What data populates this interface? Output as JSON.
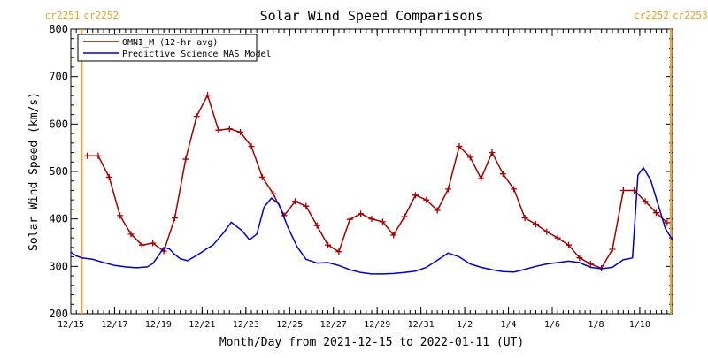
{
  "chart_data": {
    "type": "line",
    "title": "Solar Wind Speed Comparisons",
    "xlabel": "Month/Day from 2021-12-15 to 2022-01-11 (UT)",
    "ylabel": "Solar Wind Speed (km/s)",
    "xlim": [
      "2021-12-15T00:00",
      "2022-01-11T12:00"
    ],
    "ylim": [
      200,
      800
    ],
    "yticks": [
      200,
      300,
      400,
      500,
      600,
      700,
      800
    ],
    "xticks": [
      {
        "date": "2021-12-15",
        "label": "12/15"
      },
      {
        "date": "2021-12-17",
        "label": "12/17"
      },
      {
        "date": "2021-12-19",
        "label": "12/19"
      },
      {
        "date": "2021-12-21",
        "label": "12/21"
      },
      {
        "date": "2021-12-23",
        "label": "12/23"
      },
      {
        "date": "2021-12-25",
        "label": "12/25"
      },
      {
        "date": "2021-12-27",
        "label": "12/27"
      },
      {
        "date": "2021-12-29",
        "label": "12/29"
      },
      {
        "date": "2021-12-31",
        "label": "12/31"
      },
      {
        "date": "2022-01-02",
        "label": "1/2"
      },
      {
        "date": "2022-01-04",
        "label": "1/4"
      },
      {
        "date": "2022-01-06",
        "label": "1/6"
      },
      {
        "date": "2022-01-08",
        "label": "1/8"
      },
      {
        "date": "2022-01-10",
        "label": "1/10"
      }
    ],
    "carrington": [
      {
        "date": "2021-12-15T12:00",
        "left_label": "cr2251",
        "right_label": "cr2252"
      },
      {
        "date": "2022-01-11T10:00",
        "left_label": "cr2252",
        "right_label": "cr2253"
      }
    ],
    "legend_position": "top-left",
    "grid": false,
    "series": [
      {
        "name": "OMNI_M (12-hr avg)",
        "color": "#a00000",
        "markers": "plus",
        "x": [
          "2021-12-15T18:00",
          "2021-12-16T06:00",
          "2021-12-16T18:00",
          "2021-12-17T06:00",
          "2021-12-17T18:00",
          "2021-12-18T06:00",
          "2021-12-18T18:00",
          "2021-12-19T06:00",
          "2021-12-19T18:00",
          "2021-12-20T06:00",
          "2021-12-20T18:00",
          "2021-12-21T06:00",
          "2021-12-21T18:00",
          "2021-12-22T06:00",
          "2021-12-22T18:00",
          "2021-12-23T06:00",
          "2021-12-23T18:00",
          "2021-12-24T06:00",
          "2021-12-24T18:00",
          "2021-12-25T06:00",
          "2021-12-25T18:00",
          "2021-12-26T06:00",
          "2021-12-26T18:00",
          "2021-12-27T06:00",
          "2021-12-27T18:00",
          "2021-12-28T06:00",
          "2021-12-28T18:00",
          "2021-12-29T06:00",
          "2021-12-29T18:00",
          "2021-12-30T06:00",
          "2021-12-30T18:00",
          "2021-12-31T06:00",
          "2021-12-31T18:00",
          "2022-01-01T06:00",
          "2022-01-01T18:00",
          "2022-01-02T06:00",
          "2022-01-02T18:00",
          "2022-01-03T06:00",
          "2022-01-03T18:00",
          "2022-01-04T06:00",
          "2022-01-04T18:00",
          "2022-01-05T06:00",
          "2022-01-05T18:00",
          "2022-01-06T06:00",
          "2022-01-06T18:00",
          "2022-01-07T06:00",
          "2022-01-07T18:00",
          "2022-01-08T06:00",
          "2022-01-08T18:00",
          "2022-01-09T06:00",
          "2022-01-09T18:00",
          "2022-01-10T06:00",
          "2022-01-10T18:00",
          "2022-01-11T06:00"
        ],
        "values": [
          533,
          533,
          488,
          407,
          368,
          345,
          349,
          332,
          402,
          526,
          616,
          661,
          587,
          590,
          583,
          553,
          488,
          453,
          407,
          437,
          427,
          386,
          345,
          331,
          399,
          411,
          400,
          394,
          366,
          405,
          450,
          440,
          418,
          463,
          553,
          530,
          485,
          540,
          495,
          463,
          402,
          389,
          373,
          360,
          345,
          318,
          305,
          296,
          336,
          460,
          460,
          437,
          413,
          392
        ]
      },
      {
        "name": "Predictive Science MAS Model",
        "color": "#0000c0",
        "markers": "none",
        "x": [
          "2021-12-15T00:00",
          "2021-12-15T06:00",
          "2021-12-15T12:00",
          "2021-12-16T00:00",
          "2021-12-16T12:00",
          "2021-12-17T00:00",
          "2021-12-17T12:00",
          "2021-12-18T00:00",
          "2021-12-18T12:00",
          "2021-12-18T18:00",
          "2021-12-19T00:00",
          "2021-12-19T06:00",
          "2021-12-19T12:00",
          "2021-12-19T18:00",
          "2021-12-20T00:00",
          "2021-12-20T08:00",
          "2021-12-20T18:00",
          "2021-12-21T06:00",
          "2021-12-21T12:00",
          "2021-12-22T00:00",
          "2021-12-22T08:00",
          "2021-12-22T20:00",
          "2021-12-23T04:00",
          "2021-12-23T12:00",
          "2021-12-23T20:00",
          "2021-12-24T04:00",
          "2021-12-24T12:00",
          "2021-12-24T22:00",
          "2021-12-25T08:00",
          "2021-12-25T18:00",
          "2021-12-26T06:00",
          "2021-12-26T18:00",
          "2021-12-27T06:00",
          "2021-12-27T18:00",
          "2021-12-28T06:00",
          "2021-12-28T18:00",
          "2021-12-29T06:00",
          "2021-12-29T18:00",
          "2021-12-30T06:00",
          "2021-12-30T18:00",
          "2021-12-31T06:00",
          "2021-12-31T18:00",
          "2022-01-01T06:00",
          "2022-01-01T18:00",
          "2022-01-02T06:00",
          "2022-01-02T18:00",
          "2022-01-03T06:00",
          "2022-01-03T18:00",
          "2022-01-04T06:00",
          "2022-01-04T18:00",
          "2022-01-05T06:00",
          "2022-01-05T18:00",
          "2022-01-06T06:00",
          "2022-01-06T18:00",
          "2022-01-07T06:00",
          "2022-01-07T18:00",
          "2022-01-08T06:00",
          "2022-01-08T18:00",
          "2022-01-09T06:00",
          "2022-01-09T12:00",
          "2022-01-09T16:00",
          "2022-01-09T22:00",
          "2022-01-10T04:00",
          "2022-01-10T12:00",
          "2022-01-10T20:00",
          "2022-01-11T04:00",
          "2022-01-11T12:00"
        ],
        "values": [
          330,
          322,
          318,
          315,
          308,
          302,
          299,
          297,
          299,
          306,
          322,
          340,
          337,
          325,
          316,
          312,
          323,
          338,
          345,
          372,
          393,
          375,
          356,
          368,
          425,
          444,
          432,
          383,
          342,
          315,
          307,
          308,
          302,
          293,
          287,
          284,
          284,
          285,
          287,
          290,
          298,
          313,
          328,
          320,
          305,
          298,
          293,
          289,
          288,
          294,
          300,
          305,
          308,
          311,
          308,
          298,
          295,
          298,
          314,
          316,
          318,
          492,
          508,
          482,
          431,
          380,
          355
        ]
      }
    ]
  }
}
